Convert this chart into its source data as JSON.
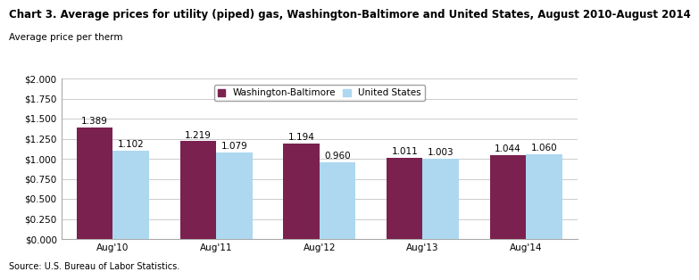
{
  "title": "Chart 3. Average prices for utility (piped) gas, Washington-Baltimore and United States, August 2010-August 2014",
  "ylabel_top": "Average price per therm",
  "source": "Source: U.S. Bureau of Labor Statistics.",
  "categories": [
    "Aug'10",
    "Aug'11",
    "Aug'12",
    "Aug'13",
    "Aug'14"
  ],
  "series": [
    {
      "name": "Washington-Baltimore",
      "values": [
        1.389,
        1.219,
        1.194,
        1.011,
        1.044
      ],
      "color": "#7B2150"
    },
    {
      "name": "United States",
      "values": [
        1.102,
        1.079,
        0.96,
        1.003,
        1.06
      ],
      "color": "#ADD8F0"
    }
  ],
  "ylim": [
    0,
    2.0
  ],
  "yticks": [
    0.0,
    0.25,
    0.5,
    0.75,
    1.0,
    1.25,
    1.5,
    1.75,
    2.0
  ],
  "ytick_labels": [
    "$0.000",
    "$0.250",
    "$0.500",
    "$0.750",
    "$1.000",
    "$1.250",
    "$1.500",
    "$1.750",
    "$2.000"
  ],
  "bar_width": 0.35,
  "background_color": "#ffffff",
  "grid_color": "#cccccc",
  "title_fontsize": 8.5,
  "sublabel_fontsize": 7.5,
  "tick_fontsize": 7.5,
  "annotation_fontsize": 7.5,
  "legend_fontsize": 7.5,
  "source_fontsize": 7
}
